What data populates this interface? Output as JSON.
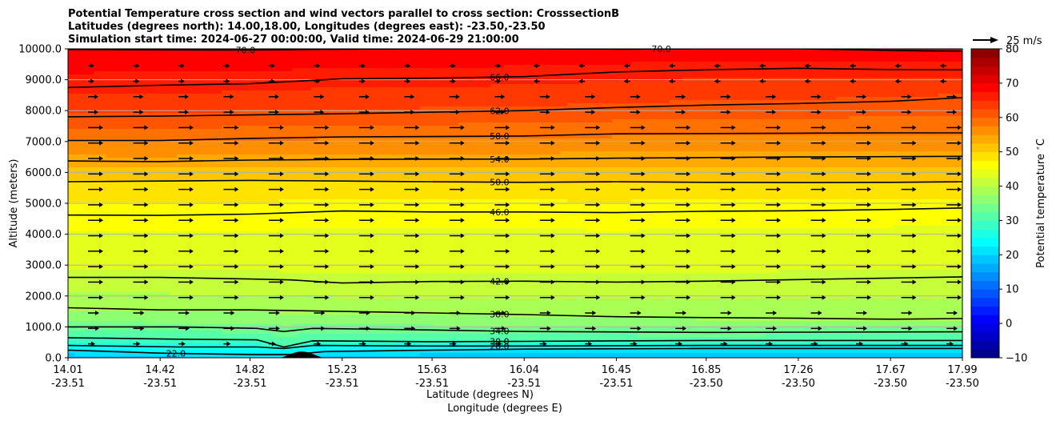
{
  "chart_data": {
    "type": "heatmap",
    "title": [
      "Potential Temperature cross section and wind vectors parallel to cross section: CrosssectionB",
      "Latitudes (degrees north): 14.00,18.00, Longitudes (degrees east): -23.50,-23.50",
      "Simulation start time: 2024-06-27 00:00:00, Valid time: 2024-06-29 21:00:00"
    ],
    "xlabel": "Latitude (degrees N)",
    "xlabel2": "Longitude (degrees E)",
    "ylabel": "Altitude (meters)",
    "x_ticks_lat": [
      "14.01",
      "14.42",
      "14.82",
      "15.23",
      "15.63",
      "16.04",
      "16.45",
      "16.85",
      "17.26",
      "17.67",
      "17.99"
    ],
    "x_ticks_lon": [
      "-23.51",
      "-23.51",
      "-23.51",
      "-23.51",
      "-23.51",
      "-23.51",
      "-23.51",
      "-23.50",
      "-23.50",
      "-23.50",
      "-23.50"
    ],
    "xlim": [
      14.01,
      17.99
    ],
    "ylim": [
      0,
      10000
    ],
    "y_ticks": [
      "0.0",
      "1000.0",
      "2000.0",
      "3000.0",
      "4000.0",
      "5000.0",
      "6000.0",
      "7000.0",
      "8000.0",
      "9000.0",
      "10000.0"
    ],
    "grid": "horizontal",
    "colorbar": {
      "label": "Potential temperature $^\\circ$C",
      "ticks": [
        "−10",
        "0",
        "10",
        "20",
        "30",
        "40",
        "50",
        "60",
        "70",
        "80"
      ],
      "range": [
        -10,
        80
      ],
      "step": 2.5,
      "colormap": "jet"
    },
    "quiver_key": {
      "label": "25 m/s",
      "value": 25
    },
    "terrain_max_altitude": 200,
    "terrain_lat_range": [
      14.95,
      15.15
    ],
    "contours": [
      {
        "label": "22.0",
        "value": 22,
        "lat": [
          14.01,
          14.42,
          14.85,
          15.0,
          15.15,
          15.63,
          16.04,
          16.85,
          17.99
        ],
        "alt": [
          250,
          150,
          100,
          100,
          200,
          250,
          280,
          300,
          300
        ]
      },
      {
        "label": "26.0",
        "value": 26,
        "lat": [
          14.01,
          14.5,
          14.85,
          14.97,
          15.1,
          15.63,
          16.04,
          16.85,
          17.99
        ],
        "alt": [
          400,
          350,
          350,
          300,
          400,
          380,
          380,
          400,
          400
        ]
      },
      {
        "label": "30.0",
        "value": 30,
        "lat": [
          14.01,
          14.5,
          14.85,
          14.97,
          15.1,
          15.63,
          16.04,
          16.85,
          17.99
        ],
        "alt": [
          650,
          600,
          580,
          350,
          550,
          520,
          530,
          560,
          560
        ]
      },
      {
        "label": "34.0",
        "value": 34,
        "lat": [
          14.01,
          14.5,
          14.85,
          14.97,
          15.1,
          15.63,
          16.04,
          16.85,
          17.99
        ],
        "alt": [
          1000,
          1000,
          950,
          850,
          950,
          900,
          850,
          820,
          840
        ]
      },
      {
        "label": "38.0",
        "value": 38,
        "lat": [
          14.01,
          14.42,
          14.82,
          15.23,
          15.63,
          16.04,
          16.45,
          16.85,
          17.26,
          17.67,
          17.99
        ],
        "alt": [
          1620,
          1550,
          1550,
          1500,
          1450,
          1400,
          1330,
          1300,
          1280,
          1250,
          1270
        ]
      },
      {
        "label": "42.0",
        "value": 42,
        "lat": [
          14.01,
          14.42,
          14.82,
          15.0,
          15.23,
          15.63,
          16.04,
          16.45,
          16.85,
          17.26,
          17.67,
          17.99
        ],
        "alt": [
          2600,
          2600,
          2550,
          2520,
          2420,
          2470,
          2480,
          2450,
          2480,
          2530,
          2580,
          2620
        ]
      },
      {
        "label": "46.0",
        "value": 46,
        "lat": [
          14.01,
          14.42,
          14.82,
          15.23,
          15.63,
          16.04,
          16.45,
          16.85,
          17.26,
          17.67,
          17.99
        ],
        "alt": [
          4620,
          4610,
          4650,
          4750,
          4720,
          4720,
          4700,
          4740,
          4760,
          4800,
          4850
        ]
      },
      {
        "label": "50.0",
        "value": 50,
        "lat": [
          14.01,
          14.42,
          14.82,
          15.23,
          15.63,
          16.04,
          16.45,
          16.85,
          17.26,
          17.67,
          17.99
        ],
        "alt": [
          5700,
          5720,
          5740,
          5720,
          5700,
          5680,
          5700,
          5680,
          5670,
          5680,
          5700
        ]
      },
      {
        "label": "54.0",
        "value": 54,
        "lat": [
          14.01,
          14.42,
          14.82,
          15.23,
          15.63,
          16.04,
          16.45,
          16.85,
          17.26,
          17.67,
          17.99
        ],
        "alt": [
          6370,
          6350,
          6400,
          6420,
          6430,
          6430,
          6460,
          6480,
          6500,
          6510,
          6520
        ]
      },
      {
        "label": "58.0",
        "value": 58,
        "lat": [
          14.01,
          14.42,
          14.82,
          15.23,
          15.63,
          16.04,
          16.45,
          16.85,
          17.26,
          17.67,
          17.99
        ],
        "alt": [
          7030,
          7030,
          7100,
          7150,
          7160,
          7180,
          7250,
          7260,
          7270,
          7280,
          7280
        ]
      },
      {
        "label": "62.0",
        "value": 62,
        "lat": [
          14.01,
          14.42,
          14.82,
          15.23,
          15.63,
          16.04,
          16.45,
          16.85,
          17.26,
          17.67,
          17.99
        ],
        "alt": [
          7800,
          7820,
          7860,
          7900,
          7950,
          8000,
          8100,
          8180,
          8230,
          8300,
          8420
        ]
      },
      {
        "label": "66.0",
        "value": 66,
        "lat": [
          14.01,
          14.42,
          14.82,
          15.23,
          15.63,
          16.04,
          16.45,
          16.85,
          17.26,
          17.67,
          17.99
        ],
        "alt": [
          8750,
          8820,
          8870,
          9030,
          9050,
          9100,
          9250,
          9320,
          9370,
          9330,
          9320
        ]
      },
      {
        "label": "70.0",
        "value": 70,
        "lat": [
          14.01,
          14.6,
          14.82,
          15.23,
          15.63,
          16.04,
          16.45,
          16.85,
          17.26,
          17.67,
          17.99
        ],
        "alt": [
          9980,
          9960,
          9960,
          9990,
          10000,
          10000,
          9990,
          10000,
          10000,
          9950,
          9920
        ]
      }
    ]
  }
}
